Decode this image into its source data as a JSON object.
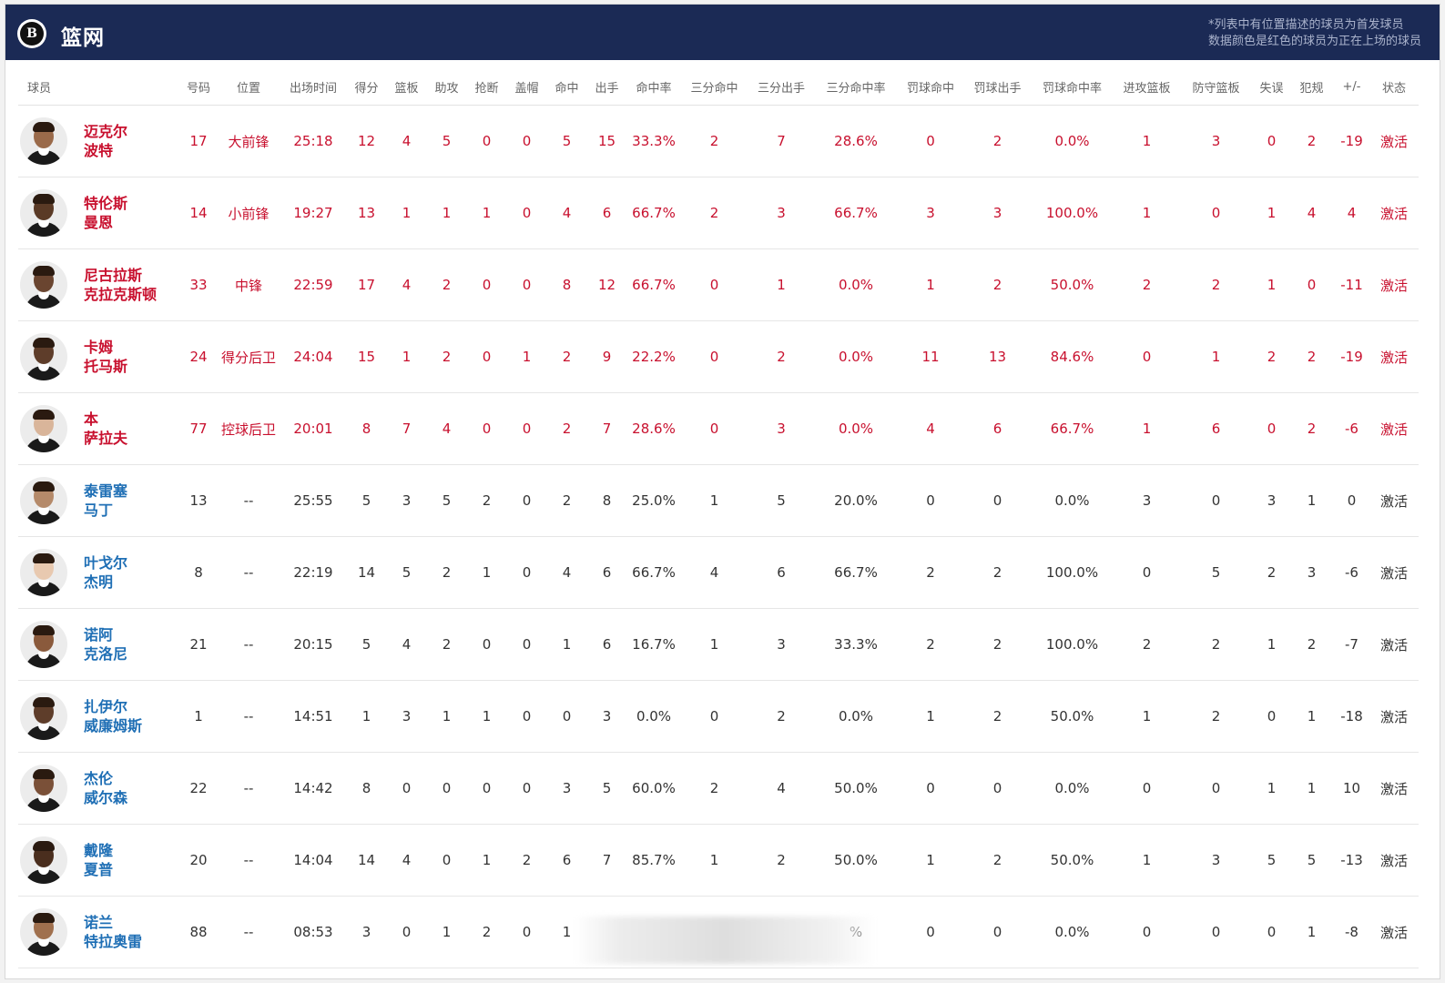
{
  "header": {
    "team_name": "篮网",
    "logo_letter": "B",
    "note_line1": "*列表中有位置描述的球员为首发球员",
    "note_line2": "数据颜色是红色的球员为正在上场的球员"
  },
  "columns": [
    "球员",
    "号码",
    "位置",
    "出场时间",
    "得分",
    "篮板",
    "助攻",
    "抢断",
    "盖帽",
    "命中",
    "出手",
    "命中率",
    "三分命中",
    "三分出手",
    "三分命中率",
    "罚球命中",
    "罚球出手",
    "罚球命中率",
    "进攻篮板",
    "防守篮板",
    "失误",
    "犯规",
    "+/-",
    "状态"
  ],
  "players": [
    {
      "name1": "迈克尔",
      "name2": "波特",
      "starter": true,
      "skin": "#9a6a4a",
      "values": [
        "17",
        "大前锋",
        "25:18",
        "12",
        "4",
        "5",
        "0",
        "0",
        "5",
        "15",
        "33.3%",
        "2",
        "7",
        "28.6%",
        "0",
        "2",
        "0.0%",
        "1",
        "3",
        "0",
        "2",
        "-19",
        "激活"
      ]
    },
    {
      "name1": "特伦斯",
      "name2": "曼恩",
      "starter": true,
      "skin": "#5a3a26",
      "values": [
        "14",
        "小前锋",
        "19:27",
        "13",
        "1",
        "1",
        "1",
        "0",
        "4",
        "6",
        "66.7%",
        "2",
        "3",
        "66.7%",
        "3",
        "3",
        "100.0%",
        "1",
        "0",
        "1",
        "4",
        "4",
        "激活"
      ]
    },
    {
      "name1": "尼古拉斯",
      "name2": "克拉克斯顿",
      "starter": true,
      "skin": "#6a4530",
      "values": [
        "33",
        "中锋",
        "22:59",
        "17",
        "4",
        "2",
        "0",
        "0",
        "8",
        "12",
        "66.7%",
        "0",
        "1",
        "0.0%",
        "1",
        "2",
        "50.0%",
        "2",
        "2",
        "1",
        "0",
        "-11",
        "激活"
      ]
    },
    {
      "name1": "卡姆",
      "name2": "托马斯",
      "starter": true,
      "skin": "#5e3d2a",
      "values": [
        "24",
        "得分后卫",
        "24:04",
        "15",
        "1",
        "2",
        "0",
        "1",
        "2",
        "9",
        "22.2%",
        "0",
        "2",
        "0.0%",
        "11",
        "13",
        "84.6%",
        "0",
        "1",
        "2",
        "2",
        "-19",
        "激活"
      ]
    },
    {
      "name1": "本",
      "name2": "萨拉夫",
      "starter": true,
      "skin": "#d9b59a",
      "values": [
        "77",
        "控球后卫",
        "20:01",
        "8",
        "7",
        "4",
        "0",
        "0",
        "2",
        "7",
        "28.6%",
        "0",
        "3",
        "0.0%",
        "4",
        "6",
        "66.7%",
        "1",
        "6",
        "0",
        "2",
        "-6",
        "激活"
      ]
    },
    {
      "name1": "泰雷塞",
      "name2": "马丁",
      "starter": false,
      "skin": "#b58a6a",
      "values": [
        "13",
        "--",
        "25:55",
        "5",
        "3",
        "5",
        "2",
        "0",
        "2",
        "8",
        "25.0%",
        "1",
        "5",
        "20.0%",
        "0",
        "0",
        "0.0%",
        "3",
        "0",
        "3",
        "1",
        "0",
        "激活"
      ]
    },
    {
      "name1": "叶戈尔",
      "name2": "杰明",
      "starter": false,
      "skin": "#e8c9b0",
      "values": [
        "8",
        "--",
        "22:19",
        "14",
        "5",
        "2",
        "1",
        "0",
        "4",
        "6",
        "66.7%",
        "4",
        "6",
        "66.7%",
        "2",
        "2",
        "100.0%",
        "0",
        "5",
        "2",
        "3",
        "-6",
        "激活"
      ]
    },
    {
      "name1": "诺阿",
      "name2": "克洛尼",
      "starter": false,
      "skin": "#8a5a3c",
      "values": [
        "21",
        "--",
        "20:15",
        "5",
        "4",
        "2",
        "0",
        "0",
        "1",
        "6",
        "16.7%",
        "1",
        "3",
        "33.3%",
        "2",
        "2",
        "100.0%",
        "2",
        "2",
        "1",
        "2",
        "-7",
        "激活"
      ]
    },
    {
      "name1": "扎伊尔",
      "name2": "威廉姆斯",
      "starter": false,
      "skin": "#5e3d2a",
      "values": [
        "1",
        "--",
        "14:51",
        "1",
        "3",
        "1",
        "1",
        "0",
        "0",
        "3",
        "0.0%",
        "0",
        "2",
        "0.0%",
        "1",
        "2",
        "50.0%",
        "1",
        "2",
        "0",
        "1",
        "-18",
        "激活"
      ]
    },
    {
      "name1": "杰伦",
      "name2": "威尔森",
      "starter": false,
      "skin": "#7a5038",
      "values": [
        "22",
        "--",
        "14:42",
        "8",
        "0",
        "0",
        "0",
        "0",
        "3",
        "5",
        "60.0%",
        "2",
        "4",
        "50.0%",
        "0",
        "0",
        "0.0%",
        "0",
        "0",
        "1",
        "1",
        "10",
        "激活"
      ]
    },
    {
      "name1": "戴隆",
      "name2": "夏普",
      "starter": false,
      "skin": "#4a2e1e",
      "values": [
        "20",
        "--",
        "14:04",
        "14",
        "4",
        "0",
        "1",
        "2",
        "6",
        "7",
        "85.7%",
        "1",
        "2",
        "50.0%",
        "1",
        "2",
        "50.0%",
        "1",
        "3",
        "5",
        "5",
        "-13",
        "激活"
      ]
    },
    {
      "name1": "诺兰",
      "name2": "特拉奥雷",
      "starter": false,
      "skin": "#a0704e",
      "values": [
        "88",
        "--",
        "08:53",
        "3",
        "0",
        "1",
        "2",
        "0",
        "1",
        "",
        "",
        "",
        "",
        "%",
        "0",
        "0",
        "0.0%",
        "0",
        "0",
        "0",
        "1",
        "-8",
        "激活"
      ]
    }
  ]
}
